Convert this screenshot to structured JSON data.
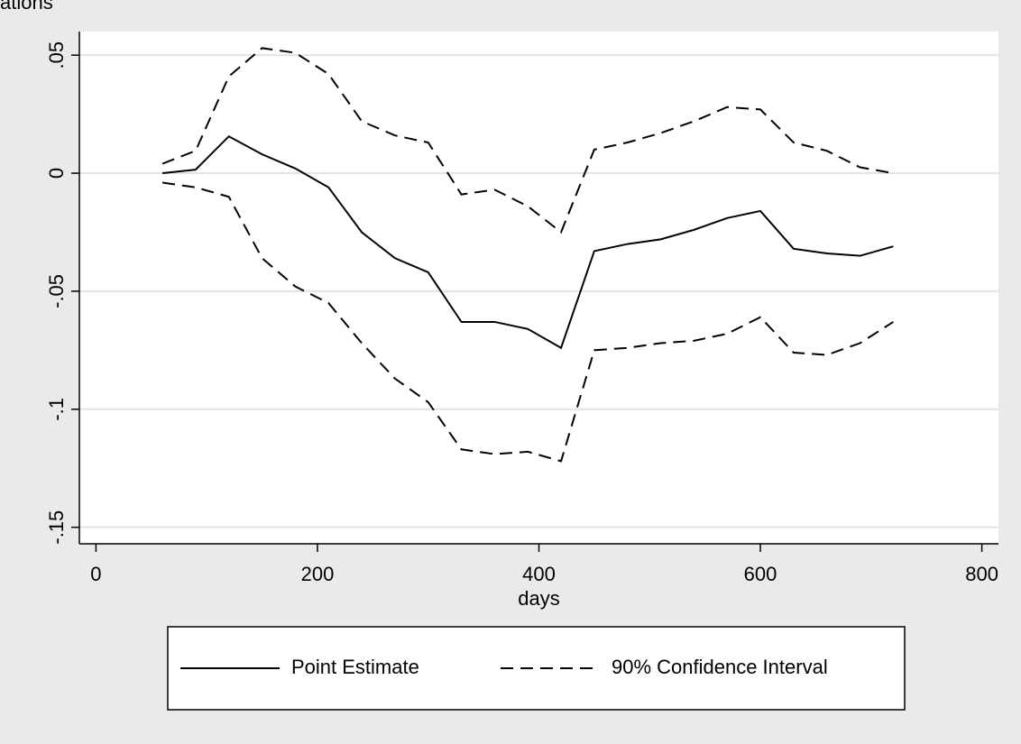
{
  "caption": "ations",
  "chart_data": {
    "type": "line",
    "x_label": "days",
    "x": [
      60,
      90,
      120,
      150,
      180,
      210,
      240,
      270,
      300,
      330,
      360,
      390,
      420,
      450,
      480,
      510,
      540,
      570,
      600,
      630,
      660,
      690,
      720
    ],
    "series": [
      {
        "name": "Point Estimate",
        "color": "#000000",
        "dash": "solid",
        "values": [
          0.0,
          0.0015,
          0.0156,
          0.008,
          0.002,
          -0.006,
          -0.025,
          -0.036,
          -0.042,
          -0.063,
          -0.063,
          -0.066,
          -0.074,
          -0.033,
          -0.03,
          -0.028,
          -0.024,
          -0.019,
          -0.016,
          -0.032,
          -0.034,
          -0.035,
          -0.031
        ]
      },
      {
        "name": "90% Confidence Interval",
        "color": "#000000",
        "dash": "dashed",
        "upper": [
          0.004,
          0.0095,
          0.041,
          0.053,
          0.051,
          0.042,
          0.022,
          0.016,
          0.013,
          -0.009,
          -0.007,
          -0.014,
          -0.025,
          0.01,
          0.013,
          0.017,
          0.022,
          0.028,
          0.027,
          0.013,
          0.0095,
          0.0025,
          0.0
        ],
        "lower": [
          -0.004,
          -0.006,
          -0.01,
          -0.036,
          -0.048,
          -0.055,
          -0.072,
          -0.087,
          -0.097,
          -0.117,
          -0.119,
          -0.118,
          -0.122,
          -0.075,
          -0.074,
          -0.072,
          -0.071,
          -0.068,
          -0.061,
          -0.076,
          -0.077,
          -0.072,
          -0.063
        ]
      }
    ],
    "xlim": [
      -15,
      815
    ],
    "ylim": [
      -0.157,
      0.06
    ],
    "xticks": [
      0,
      200,
      400,
      600,
      800
    ],
    "yticks": [
      {
        "value": 0.05,
        "label": ".05"
      },
      0,
      {
        "value": -0.05,
        "label": "-.05"
      },
      {
        "value": -0.1,
        "label": "-.1"
      },
      {
        "value": -0.15,
        "label": "-.15"
      }
    ],
    "grid": true,
    "legend": "bottom"
  }
}
